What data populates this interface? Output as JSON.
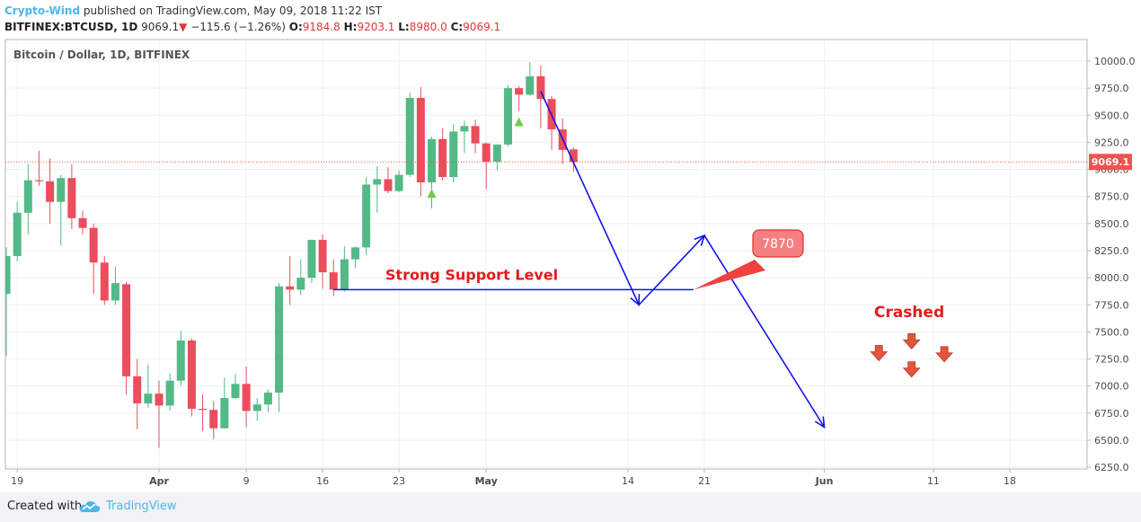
{
  "header": {
    "author": "Crypto-Wind",
    "published_text": "published on TradingView.com, May 09, 2018 11:22 IST",
    "symbol": "BITFINEX:BTCUSD, 1D",
    "last": "9069.1",
    "change_arrow": "▼",
    "change": "−115.6 (−1.26%)",
    "o_label": "O:",
    "o_value": "9184.8",
    "h_label": "H:",
    "h_value": "9203.1",
    "l_label": "L:",
    "l_value": "8980.0",
    "c_label": "C:",
    "c_value": "9069.1"
  },
  "footer": {
    "created_with": "Created with",
    "brand": "TradingView",
    "logo_icon": "tradingview-cloud-icon"
  },
  "chart_data": {
    "type": "candlestick",
    "title": "Bitcoin / Dollar, 1D, BITFINEX",
    "ylim": [
      6200,
      10150
    ],
    "y_ticks": [
      "10000.0",
      "9750.0",
      "9500.0",
      "9250.0",
      "9000.0",
      "8750.0",
      "8500.0",
      "8250.0",
      "8000.0",
      "7750.0",
      "7500.0",
      "7250.0",
      "7000.0",
      "6750.0",
      "6500.0",
      "6250.0"
    ],
    "x_ticks": [
      {
        "label": "19",
        "date": "2018-03-19"
      },
      {
        "label": "Apr",
        "date": "2018-04-01"
      },
      {
        "label": "9",
        "date": "2018-04-09"
      },
      {
        "label": "16",
        "date": "2018-04-16"
      },
      {
        "label": "23",
        "date": "2018-04-23"
      },
      {
        "label": "May",
        "date": "2018-05-01"
      },
      {
        "label": "14",
        "date": "2018-05-14"
      },
      {
        "label": "21",
        "date": "2018-05-21"
      },
      {
        "label": "Jun",
        "date": "2018-06-01"
      },
      {
        "label": "11",
        "date": "2018-06-11"
      },
      {
        "label": "18",
        "date": "2018-06-18"
      }
    ],
    "grid": true,
    "last_price": "9069.1",
    "last_price_color": "#ef5350",
    "up_color": "#53b987",
    "down_color": "#eb4d5c",
    "candles": [
      {
        "date": "2018-03-18",
        "o": 7850,
        "h": 8280,
        "l": 7280,
        "c": 8200
      },
      {
        "date": "2018-03-19",
        "o": 8200,
        "h": 8700,
        "l": 8150,
        "c": 8600
      },
      {
        "date": "2018-03-20",
        "o": 8600,
        "h": 9050,
        "l": 8400,
        "c": 8900
      },
      {
        "date": "2018-03-21",
        "o": 8900,
        "h": 9170,
        "l": 8850,
        "c": 8890
      },
      {
        "date": "2018-03-22",
        "o": 8890,
        "h": 9100,
        "l": 8500,
        "c": 8700
      },
      {
        "date": "2018-03-23",
        "o": 8700,
        "h": 8950,
        "l": 8300,
        "c": 8920
      },
      {
        "date": "2018-03-24",
        "o": 8920,
        "h": 9050,
        "l": 8450,
        "c": 8550
      },
      {
        "date": "2018-03-25",
        "o": 8550,
        "h": 8620,
        "l": 8400,
        "c": 8460
      },
      {
        "date": "2018-03-26",
        "o": 8460,
        "h": 8500,
        "l": 7850,
        "c": 8140
      },
      {
        "date": "2018-03-27",
        "o": 8140,
        "h": 8200,
        "l": 7750,
        "c": 7790
      },
      {
        "date": "2018-03-28",
        "o": 7790,
        "h": 8100,
        "l": 7750,
        "c": 7950
      },
      {
        "date": "2018-03-29",
        "o": 7940,
        "h": 7960,
        "l": 6920,
        "c": 7090
      },
      {
        "date": "2018-03-30",
        "o": 7090,
        "h": 7250,
        "l": 6600,
        "c": 6840
      },
      {
        "date": "2018-03-31",
        "o": 6840,
        "h": 7200,
        "l": 6800,
        "c": 6930
      },
      {
        "date": "2018-04-01",
        "o": 6930,
        "h": 7050,
        "l": 6430,
        "c": 6820
      },
      {
        "date": "2018-04-02",
        "o": 6820,
        "h": 7120,
        "l": 6770,
        "c": 7050
      },
      {
        "date": "2018-04-03",
        "o": 7050,
        "h": 7510,
        "l": 7000,
        "c": 7420
      },
      {
        "date": "2018-04-04",
        "o": 7420,
        "h": 7440,
        "l": 6720,
        "c": 6790
      },
      {
        "date": "2018-04-05",
        "o": 6790,
        "h": 6920,
        "l": 6580,
        "c": 6780
      },
      {
        "date": "2018-04-06",
        "o": 6780,
        "h": 6860,
        "l": 6510,
        "c": 6610
      },
      {
        "date": "2018-04-07",
        "o": 6610,
        "h": 7080,
        "l": 6610,
        "c": 6890
      },
      {
        "date": "2018-04-08",
        "o": 6890,
        "h": 7110,
        "l": 6880,
        "c": 7020
      },
      {
        "date": "2018-04-09",
        "o": 7020,
        "h": 7180,
        "l": 6620,
        "c": 6770
      },
      {
        "date": "2018-04-10",
        "o": 6770,
        "h": 6890,
        "l": 6680,
        "c": 6830
      },
      {
        "date": "2018-04-11",
        "o": 6830,
        "h": 6970,
        "l": 6760,
        "c": 6940
      },
      {
        "date": "2018-04-12",
        "o": 6940,
        "h": 7950,
        "l": 6760,
        "c": 7920
      },
      {
        "date": "2018-04-13",
        "o": 7920,
        "h": 8200,
        "l": 7750,
        "c": 7890
      },
      {
        "date": "2018-04-14",
        "o": 7890,
        "h": 8170,
        "l": 7840,
        "c": 8000
      },
      {
        "date": "2018-04-15",
        "o": 8000,
        "h": 8350,
        "l": 7950,
        "c": 8350
      },
      {
        "date": "2018-04-16",
        "o": 8350,
        "h": 8400,
        "l": 7900,
        "c": 8050
      },
      {
        "date": "2018-04-17",
        "o": 8050,
        "h": 8170,
        "l": 7830,
        "c": 7890
      },
      {
        "date": "2018-04-18",
        "o": 7890,
        "h": 8290,
        "l": 7870,
        "c": 8170
      },
      {
        "date": "2018-04-19",
        "o": 8170,
        "h": 8290,
        "l": 8090,
        "c": 8280
      },
      {
        "date": "2018-04-20",
        "o": 8280,
        "h": 8930,
        "l": 8210,
        "c": 8860
      },
      {
        "date": "2018-04-21",
        "o": 8860,
        "h": 9030,
        "l": 8600,
        "c": 8910
      },
      {
        "date": "2018-04-22",
        "o": 8910,
        "h": 9020,
        "l": 8780,
        "c": 8800
      },
      {
        "date": "2018-04-23",
        "o": 8800,
        "h": 8990,
        "l": 8790,
        "c": 8950
      },
      {
        "date": "2018-04-24",
        "o": 8950,
        "h": 9710,
        "l": 8930,
        "c": 9660
      },
      {
        "date": "2018-04-25",
        "o": 9660,
        "h": 9760,
        "l": 8750,
        "c": 8880
      },
      {
        "date": "2018-04-26",
        "o": 8880,
        "h": 9300,
        "l": 8640,
        "c": 9280
      },
      {
        "date": "2018-04-27",
        "o": 9280,
        "h": 9380,
        "l": 8900,
        "c": 8930
      },
      {
        "date": "2018-04-28",
        "o": 8930,
        "h": 9420,
        "l": 8880,
        "c": 9350
      },
      {
        "date": "2018-04-29",
        "o": 9350,
        "h": 9450,
        "l": 9150,
        "c": 9400
      },
      {
        "date": "2018-04-30",
        "o": 9400,
        "h": 9460,
        "l": 9150,
        "c": 9240
      },
      {
        "date": "2018-05-01",
        "o": 9240,
        "h": 9250,
        "l": 8820,
        "c": 9070
      },
      {
        "date": "2018-05-02",
        "o": 9070,
        "h": 9230,
        "l": 8990,
        "c": 9230
      },
      {
        "date": "2018-05-03",
        "o": 9230,
        "h": 9780,
        "l": 9210,
        "c": 9750
      },
      {
        "date": "2018-05-04",
        "o": 9750,
        "h": 9770,
        "l": 9540,
        "c": 9690
      },
      {
        "date": "2018-05-05",
        "o": 9690,
        "h": 9990,
        "l": 9680,
        "c": 9860
      },
      {
        "date": "2018-05-06",
        "o": 9860,
        "h": 9960,
        "l": 9380,
        "c": 9650
      },
      {
        "date": "2018-05-07",
        "o": 9650,
        "h": 9680,
        "l": 9180,
        "c": 9370
      },
      {
        "date": "2018-05-08",
        "o": 9370,
        "h": 9470,
        "l": 9050,
        "c": 9180
      },
      {
        "date": "2018-05-09",
        "o": 9184.8,
        "h": 9203.1,
        "l": 8980.0,
        "c": 9069.1
      }
    ],
    "signal_markers": [
      {
        "date": "2018-04-26",
        "price": 8780,
        "direction": "up"
      },
      {
        "date": "2018-05-04",
        "price": 9440,
        "direction": "up"
      }
    ],
    "annotations": {
      "support_label": "Strong Support Level",
      "support_price": 7890,
      "support_from": "2018-04-17",
      "support_to": "2018-05-20",
      "callout_text": "7870",
      "crashed_label": "Crashed",
      "projection_path": [
        {
          "date": "2018-05-06",
          "price": 9720
        },
        {
          "date": "2018-05-15",
          "price": 7750
        },
        {
          "date": "2018-05-21",
          "price": 8390
        },
        {
          "date": "2018-06-01",
          "price": 6620
        }
      ],
      "crash_arrows": [
        {
          "date": "2018-06-06",
          "price": 7300
        },
        {
          "date": "2018-06-09",
          "price": 7150
        },
        {
          "date": "2018-06-09",
          "price": 7410
        },
        {
          "date": "2018-06-12",
          "price": 7290
        }
      ],
      "line_color": "#1414e6",
      "text_color": "#e31b1b"
    }
  }
}
